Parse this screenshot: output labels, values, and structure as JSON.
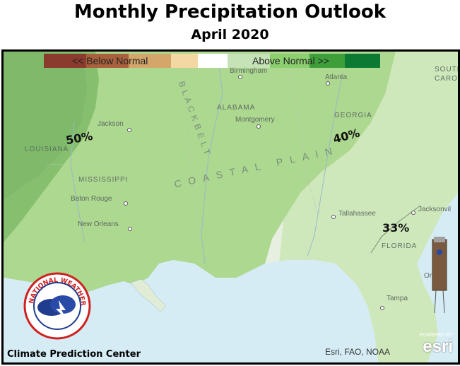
{
  "title": "Monthly Precipitation Outlook",
  "subtitle": "April 2020",
  "legend": {
    "below_label": "<<   Below Normal",
    "above_label": "Above Normal   >>",
    "colors": [
      "#8b3a2e",
      "#a9603c",
      "#d4a66a",
      "#f3d8a3",
      "#ffffff",
      "#c6e3b8",
      "#8ccf6f",
      "#3e9f3a",
      "#0c7a32"
    ]
  },
  "places": {
    "birmingham": "Birmingham",
    "atlanta": "Atlanta",
    "jackson": "Jackson",
    "montgomery": "Montgomery",
    "baton_rouge": "Baton Rouge",
    "new_orleans": "New Orleans",
    "tallahassee": "Tallahassee",
    "jacksonville": "Jacksonvil",
    "tampa": "Tampa",
    "orlando": "Or",
    "south_carolina_1": "SOUTH",
    "south_carolina_2": "CAROLI",
    "alabama": "ALABAMA",
    "georgia": "GEORGIA",
    "mississippi": "MISSISSIPPI",
    "louisiana": "LOUISIANA",
    "florida": "FLORIDA",
    "coastal_plain": "COASTAL  PLAIN",
    "black_belt": "B L A C K   B E L T"
  },
  "outlook_labels": {
    "west": "50%",
    "central": "40%",
    "south": "33%"
  },
  "colors": {
    "water": "#d8eef6",
    "zone_50": "#7dba6a",
    "zone_40": "#a8d58e",
    "zone_33": "#cbe8b6",
    "land_base": "#eef3e8"
  },
  "credits": {
    "attribution": "Esri, FAO, NOAA",
    "cpc": "Climate Prediction Center",
    "powered_by": "POWERED BY",
    "esri": "esri"
  },
  "logo": {
    "text": "NATIONAL WEATHER SERVICE"
  }
}
